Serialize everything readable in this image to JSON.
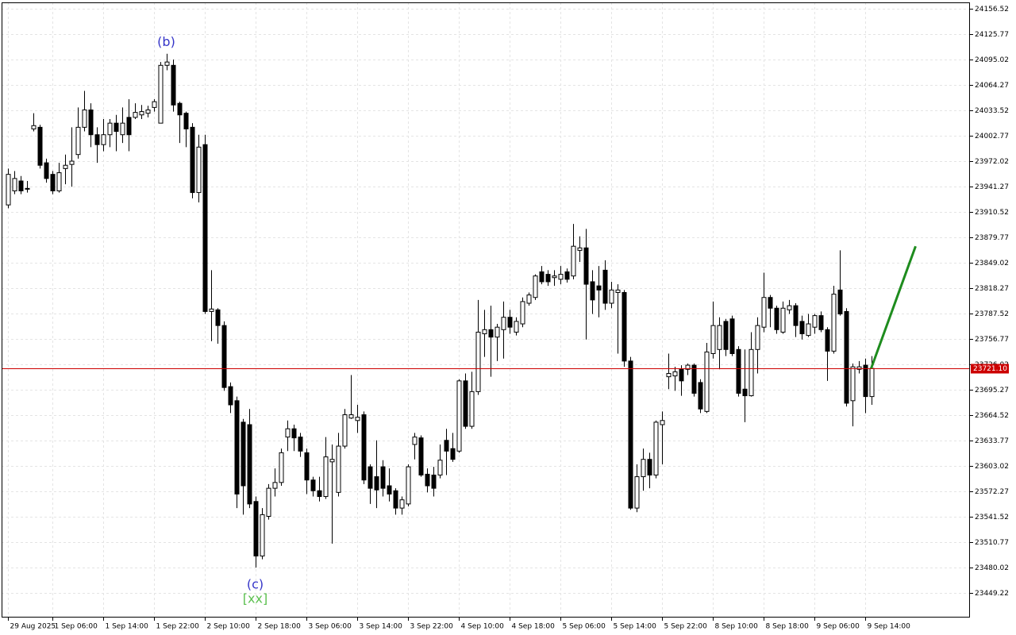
{
  "chart_data": {
    "type": "candlestick",
    "categories": [
      "29 Aug 2025",
      null,
      null,
      null,
      null,
      null,
      null,
      "1 Sep 06:00",
      null,
      null,
      null,
      null,
      null,
      null,
      null,
      "1 Sep 14:00",
      null,
      null,
      null,
      null,
      null,
      null,
      null,
      "1 Sep 22:00",
      null,
      null,
      null,
      null,
      null,
      null,
      null,
      "2 Sep 10:00",
      null,
      null,
      null,
      null,
      null,
      null,
      null,
      "2 Sep 18:00",
      null,
      null,
      null,
      null,
      null,
      null,
      null,
      "3 Sep 06:00",
      null,
      null,
      null,
      null,
      null,
      null,
      null,
      "3 Sep 14:00",
      null,
      null,
      null,
      null,
      null,
      null,
      null,
      "3 Sep 22:00",
      null,
      null,
      null,
      null,
      null,
      null,
      null,
      "4 Sep 10:00",
      null,
      null,
      null,
      null,
      null,
      null,
      null,
      "4 Sep 18:00",
      null,
      null,
      null,
      null,
      null,
      null,
      null,
      "5 Sep 06:00",
      null,
      null,
      null,
      null,
      null,
      null,
      null,
      "5 Sep 14:00",
      null,
      null,
      null,
      null,
      null,
      null,
      null,
      "5 Sep 22:00",
      null,
      null,
      null,
      null,
      null,
      null,
      null,
      "8 Sep 10:00",
      null,
      null,
      null,
      null,
      null,
      null,
      null,
      "8 Sep 18:00",
      null,
      null,
      null,
      null,
      null,
      null,
      null,
      "9 Sep 06:00",
      null,
      null,
      null,
      null,
      null,
      null,
      null,
      "9 Sep 14:00",
      null
    ],
    "open": [
      23919,
      23936,
      23948,
      23939,
      24011,
      24013,
      23970,
      23956,
      23936,
      23963,
      23968,
      23980,
      24013,
      24034,
      24004,
      23992,
      24004,
      24018,
      24004,
      24025,
      24025,
      24028,
      24030,
      24037,
      24018,
      24088,
      24088,
      24042,
      24030,
      24013,
      23934,
      23992,
      23790,
      23792,
      23773,
      23699,
      23682,
      23656,
      23653,
      23560,
      23494,
      23542,
      23576,
      23583,
      23638,
      23648,
      23638,
      23619,
      23586,
      23573,
      23566,
      23608,
      23571,
      23627,
      23661,
      23658,
      23665,
      23602,
      23590,
      23602,
      23579,
      23573,
      23552,
      23557,
      23629,
      23637,
      23593,
      23592,
      23592,
      23634,
      23624,
      23621,
      23706,
      23651,
      23693,
      23763,
      23768,
      23759,
      23768,
      23783,
      23765,
      23775,
      23800,
      23807,
      23838,
      23835,
      23831,
      23829,
      23838,
      23833,
      23864,
      23867,
      23826,
      23821,
      23840,
      23800,
      23813,
      23813,
      23730,
      23552,
      23590,
      23611,
      23592,
      23653,
      23711,
      23712,
      23720,
      23720,
      23725,
      23704,
      23669,
      23739,
      23744,
      23778,
      23781,
      23744,
      23696,
      23688,
      23744,
      23771,
      23807,
      23794,
      23765,
      23792,
      23797,
      23778,
      23761,
      23771,
      23785,
      23768,
      23742,
      23816,
      23790,
      23682,
      23720,
      23725,
      23687
    ],
    "high": [
      23963,
      23960,
      23954,
      23948,
      24030,
      24016,
      23975,
      23960,
      23970,
      23980,
      24013,
      24037,
      24057,
      24042,
      24013,
      24023,
      24023,
      24028,
      24037,
      24047,
      24042,
      24040,
      24039,
      24047,
      24092,
      24102,
      24095,
      24044,
      24032,
      24018,
      24004,
      24004,
      23840,
      23794,
      23778,
      23704,
      23687,
      23660,
      23672,
      23566,
      23552,
      23581,
      23600,
      23624,
      23658,
      23653,
      23643,
      23624,
      23590,
      23590,
      23638,
      23629,
      23643,
      23672,
      23713,
      23677,
      23669,
      23605,
      23634,
      23610,
      23600,
      23576,
      23566,
      23605,
      23643,
      23640,
      23600,
      23602,
      23629,
      23648,
      23643,
      23708,
      23715,
      23717,
      23804,
      23792,
      23797,
      23775,
      23802,
      23792,
      23783,
      23807,
      23813,
      23835,
      23845,
      23840,
      23840,
      23845,
      23842,
      23896,
      23881,
      23890,
      23840,
      23845,
      23852,
      23826,
      23823,
      23816,
      23735,
      23605,
      23624,
      23619,
      23658,
      23669,
      23739,
      23723,
      23725,
      23727,
      23727,
      23708,
      23752,
      23802,
      23783,
      23781,
      23785,
      23748,
      23744,
      23765,
      23783,
      23837,
      23810,
      23797,
      23802,
      23804,
      23800,
      23785,
      23787,
      23787,
      23790,
      23771,
      23821,
      23864,
      23794,
      23727,
      23730,
      23733,
      23736
    ],
    "low": [
      23915,
      23932,
      23932,
      23934,
      24008,
      23963,
      23946,
      23932,
      23934,
      23944,
      23941,
      23975,
      24008,
      23989,
      23970,
      23984,
      23989,
      23984,
      23994,
      23984,
      24023,
      24023,
      24025,
      24032,
      24018,
      24082,
      24032,
      23994,
      23989,
      23927,
      23922,
      23787,
      23754,
      23751,
      23694,
      23667,
      23552,
      23544,
      23552,
      23480,
      23490,
      23538,
      23566,
      23579,
      23621,
      23621,
      23614,
      23569,
      23566,
      23560,
      23563,
      23509,
      23566,
      23624,
      23660,
      23643,
      23581,
      23557,
      23552,
      23566,
      23560,
      23544,
      23544,
      23554,
      23611,
      23590,
      23571,
      23566,
      23588,
      23592,
      23608,
      23619,
      23648,
      23648,
      23689,
      23735,
      23711,
      23730,
      23733,
      23763,
      23761,
      23771,
      23797,
      23804,
      23823,
      23821,
      23821,
      23823,
      23825,
      23829,
      23850,
      23756,
      23787,
      23783,
      23792,
      23794,
      23739,
      23723,
      23550,
      23547,
      23573,
      23576,
      23588,
      23605,
      23696,
      23694,
      23688,
      23713,
      23687,
      23667,
      23667,
      23733,
      23720,
      23736,
      23736,
      23687,
      23656,
      23687,
      23715,
      23765,
      23771,
      23763,
      23763,
      23787,
      23759,
      23756,
      23759,
      23763,
      23765,
      23706,
      23739,
      23785,
      23675,
      23651,
      23715,
      23667,
      23677
    ],
    "close": [
      23956,
      23951,
      23936,
      23938,
      24015,
      23967,
      23951,
      23936,
      23958,
      23967,
      23972,
      24013,
      24034,
      24004,
      23992,
      24004,
      24018,
      24008,
      24018,
      24004,
      24031,
      24032,
      24034,
      24044,
      24088,
      24092,
      24040,
      24028,
      24011,
      23934,
      23989,
      23790,
      23793,
      23773,
      23698,
      23677,
      23569,
      23579,
      23557,
      23494,
      23544,
      23576,
      23583,
      23619,
      23648,
      23637,
      23621,
      23586,
      23573,
      23566,
      23614,
      23611,
      23627,
      23665,
      23665,
      23662,
      23586,
      23576,
      23574,
      23576,
      23569,
      23552,
      23562,
      23602,
      23638,
      23592,
      23579,
      23576,
      23610,
      23621,
      23611,
      23706,
      23651,
      23693,
      23765,
      23768,
      23759,
      23771,
      23783,
      23771,
      23778,
      23802,
      23810,
      23833,
      23826,
      23826,
      23833,
      23835,
      23829,
      23869,
      23867,
      23823,
      23804,
      23816,
      23800,
      23816,
      23816,
      23730,
      23552,
      23590,
      23611,
      23592,
      23656,
      23658,
      23715,
      23717,
      23706,
      23725,
      23691,
      23672,
      23741,
      23773,
      23773,
      23744,
      23739,
      23691,
      23688,
      23744,
      23773,
      23807,
      23794,
      23768,
      23794,
      23797,
      23773,
      23763,
      23775,
      23785,
      23768,
      23742,
      23811,
      23787,
      23679,
      23723,
      23723,
      23687,
      23721.1
    ],
    "up_color": "#ffffff",
    "down_color": "#000000",
    "ylim": [
      23419.5,
      24164.2
    ],
    "yticks": [
      24156.52,
      24125.77,
      24095.02,
      24064.27,
      24033.52,
      24002.77,
      23972.02,
      23941.27,
      23910.52,
      23879.77,
      23849.02,
      23818.27,
      23787.52,
      23756.77,
      23726.02,
      23695.27,
      23664.52,
      23633.77,
      23603.02,
      23572.27,
      23541.52,
      23510.77,
      23480.02,
      23449.22
    ],
    "grid": true,
    "current_price": {
      "value": 23721.1,
      "label": "23721.10"
    },
    "price_line_color": "#cc0000",
    "forecast": {
      "x": [
        136,
        143
      ],
      "values": [
        23721.1,
        23869
      ],
      "color": "#1e8c1e"
    },
    "annotations": [
      {
        "text": "(b)",
        "index": 25,
        "color": "#3535c8"
      },
      {
        "text": "(c)",
        "index": 39,
        "color": "#3535c8"
      },
      {
        "text": "[xx]",
        "index": 39,
        "color": "#5cc050"
      }
    ]
  }
}
